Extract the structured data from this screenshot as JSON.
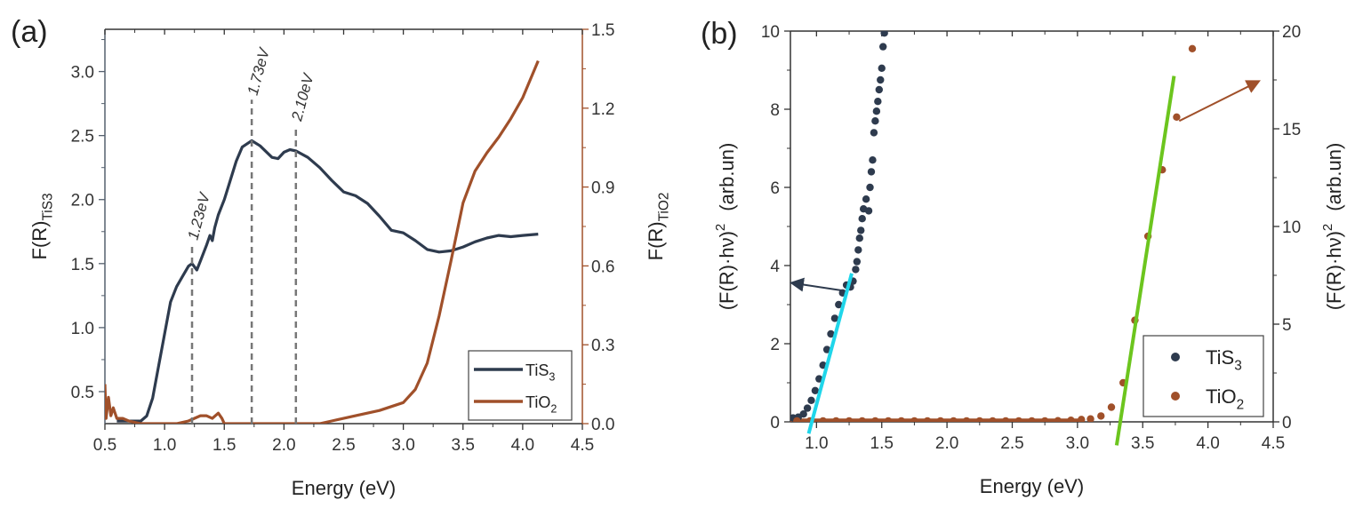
{
  "chart_data": [
    {
      "type": "line",
      "panel_label": "(a)",
      "xlabel": "Energy (eV)",
      "ylabel_left": {
        "main": "F(R)",
        "sub": "TiS3"
      },
      "ylabel_right": {
        "main": "F(R)",
        "sub": "TiO2"
      },
      "xlim": [
        0.5,
        4.5
      ],
      "ylim_left": [
        0.25,
        3.33
      ],
      "ylim_right": [
        0,
        1.5
      ],
      "xticks": [
        "0.5",
        "1.0",
        "1.5",
        "2.0",
        "2.5",
        "3.0",
        "3.5",
        "4.0",
        "4.5"
      ],
      "yticks_left": [
        "0.5",
        "1.0",
        "1.5",
        "2.0",
        "2.5",
        "3.0"
      ],
      "yticks_right": [
        "0.0",
        "0.3",
        "0.6",
        "0.9",
        "1.2",
        "1.5"
      ],
      "legend": {
        "position": "bottom-right",
        "entries": [
          {
            "main": "TiS",
            "sub": "3"
          },
          {
            "main": "TiO",
            "sub": "2"
          }
        ]
      },
      "annotations": [
        {
          "label": "1.23eV",
          "x": 1.23,
          "ytop": 1.65
        },
        {
          "label": "1.73eV",
          "x": 1.73,
          "ytop": 2.78
        },
        {
          "label": "2.10eV",
          "x": 2.1,
          "ytop": 2.58
        }
      ],
      "series": [
        {
          "name": "TiS3",
          "axis": "left",
          "color": "#2e3b4e",
          "x": [
            0.6,
            0.8,
            0.85,
            0.9,
            0.95,
            1.0,
            1.05,
            1.1,
            1.15,
            1.2,
            1.23,
            1.27,
            1.3,
            1.35,
            1.38,
            1.4,
            1.42,
            1.45,
            1.5,
            1.55,
            1.6,
            1.65,
            1.73,
            1.8,
            1.9,
            1.95,
            2.0,
            2.05,
            2.1,
            2.2,
            2.3,
            2.4,
            2.5,
            2.6,
            2.7,
            2.8,
            2.9,
            3.0,
            3.1,
            3.2,
            3.3,
            3.4,
            3.5,
            3.6,
            3.7,
            3.8,
            3.9,
            4.0,
            4.13
          ],
          "y": [
            0.27,
            0.27,
            0.31,
            0.45,
            0.7,
            0.95,
            1.2,
            1.32,
            1.4,
            1.48,
            1.5,
            1.45,
            1.52,
            1.64,
            1.72,
            1.68,
            1.78,
            1.88,
            2.0,
            2.15,
            2.3,
            2.41,
            2.46,
            2.42,
            2.33,
            2.32,
            2.37,
            2.39,
            2.38,
            2.33,
            2.25,
            2.15,
            2.06,
            2.03,
            1.97,
            1.87,
            1.76,
            1.74,
            1.68,
            1.61,
            1.59,
            1.6,
            1.63,
            1.67,
            1.7,
            1.72,
            1.71,
            1.72,
            1.73
          ]
        },
        {
          "name": "TiO2",
          "axis": "right",
          "color": "#a0502a",
          "x": [
            0.5,
            0.51,
            0.53,
            0.55,
            0.57,
            0.6,
            0.65,
            0.7,
            0.8,
            1.1,
            1.2,
            1.3,
            1.35,
            1.4,
            1.45,
            1.48,
            1.5,
            2.3,
            2.4,
            2.6,
            2.8,
            3.0,
            3.1,
            3.2,
            3.3,
            3.4,
            3.5,
            3.6,
            3.7,
            3.8,
            3.9,
            4.0,
            4.13
          ],
          "y": [
            0.15,
            0.02,
            0.1,
            0.03,
            0.06,
            0.02,
            0.02,
            0.01,
            0.0,
            0.0,
            0.01,
            0.03,
            0.03,
            0.02,
            0.04,
            0.02,
            0.0,
            0.0,
            0.01,
            0.03,
            0.05,
            0.08,
            0.13,
            0.23,
            0.41,
            0.62,
            0.84,
            0.96,
            1.03,
            1.09,
            1.16,
            1.24,
            1.38
          ]
        }
      ]
    },
    {
      "type": "scatter",
      "panel_label": "(b)",
      "xlabel": "Energy (eV)",
      "ylabel_left": {
        "main": "(F(R)·hν)",
        "sup": "2",
        "unit": "(arb.un)"
      },
      "ylabel_right": {
        "main": "(F(R)·hν)",
        "sup": "2",
        "unit": "(arb.un)"
      },
      "xlim": [
        0.8,
        4.5
      ],
      "ylim_left": [
        0,
        10
      ],
      "ylim_right": [
        0,
        20
      ],
      "xticks": [
        "1.0",
        "1.5",
        "2.0",
        "2.5",
        "3.0",
        "3.5",
        "4.0",
        "4.5"
      ],
      "yticks_left": [
        "0",
        "2",
        "4",
        "6",
        "8",
        "10"
      ],
      "yticks_right": [
        "0",
        "5",
        "10",
        "15",
        "20"
      ],
      "legend": {
        "position": "bottom-right",
        "entries": [
          {
            "main": "TiS",
            "sub": "3"
          },
          {
            "main": "TiO",
            "sub": "2"
          }
        ]
      },
      "series": [
        {
          "name": "TiS3",
          "axis": "left",
          "color": "#2e3b4e",
          "x": [
            0.82,
            0.86,
            0.9,
            0.93,
            0.96,
            0.99,
            1.02,
            1.05,
            1.08,
            1.11,
            1.14,
            1.17,
            1.2,
            1.23,
            1.26,
            1.28,
            1.3,
            1.31,
            1.32,
            1.33,
            1.34,
            1.35,
            1.36,
            1.38,
            1.4,
            1.41,
            1.42,
            1.43,
            1.44,
            1.45,
            1.46,
            1.47,
            1.48,
            1.49,
            1.5,
            1.51,
            1.52
          ],
          "y": [
            0.1,
            0.12,
            0.2,
            0.35,
            0.55,
            0.8,
            1.1,
            1.45,
            1.85,
            2.25,
            2.65,
            3.0,
            3.3,
            3.5,
            3.45,
            3.6,
            3.9,
            4.1,
            4.4,
            4.7,
            4.9,
            5.2,
            5.45,
            5.7,
            5.4,
            6.0,
            6.4,
            6.7,
            7.4,
            7.7,
            7.95,
            8.2,
            8.5,
            8.75,
            9.05,
            9.6,
            9.95
          ]
        },
        {
          "name": "TiO2",
          "axis": "right",
          "color": "#a0502a",
          "x": [
            0.85,
            0.95,
            1.05,
            1.15,
            1.25,
            1.35,
            1.45,
            1.55,
            1.65,
            1.75,
            1.85,
            1.95,
            2.05,
            2.15,
            2.25,
            2.35,
            2.45,
            2.55,
            2.65,
            2.75,
            2.85,
            2.95,
            3.03,
            3.1,
            3.18,
            3.26,
            3.35,
            3.44,
            3.54,
            3.65,
            3.76,
            3.88
          ],
          "y": [
            0.05,
            0.05,
            0.05,
            0.05,
            0.05,
            0.05,
            0.05,
            0.05,
            0.05,
            0.05,
            0.05,
            0.05,
            0.05,
            0.05,
            0.05,
            0.05,
            0.05,
            0.05,
            0.05,
            0.05,
            0.06,
            0.08,
            0.12,
            0.15,
            0.3,
            0.75,
            2.0,
            5.2,
            9.5,
            12.9,
            15.6,
            19.1
          ]
        }
      ],
      "fit_lines": [
        {
          "name": "TiS3-fit",
          "axis": "left",
          "color": "#1fd6ea",
          "x": [
            0.94,
            1.27
          ],
          "y": [
            -0.3,
            3.8
          ]
        },
        {
          "name": "TiO2-fit",
          "axis": "right",
          "color": "#6cc51e",
          "x": [
            3.3,
            3.74
          ],
          "y": [
            -1.2,
            17.7
          ]
        }
      ],
      "arrows": [
        {
          "name": "TiS3-axis-arrow",
          "axis": "left",
          "color": "#2e3b4e",
          "from": [
            1.22,
            3.35
          ],
          "to": [
            0.82,
            3.55
          ]
        },
        {
          "name": "TiO2-axis-arrow",
          "axis": "right",
          "color": "#a0502a",
          "from": [
            3.78,
            15.4
          ],
          "to": [
            4.38,
            17.4
          ]
        }
      ]
    }
  ]
}
